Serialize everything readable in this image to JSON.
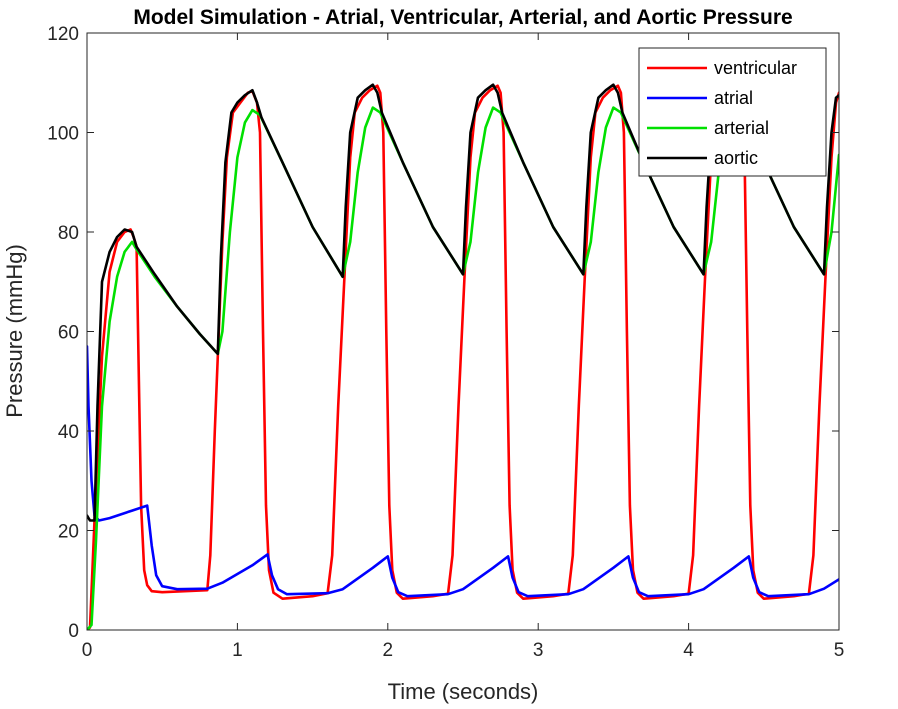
{
  "chart_data": {
    "type": "line",
    "title": "Model Simulation - Atrial, Ventricular, Arterial, and Aortic Pressure",
    "xlabel": "Time (seconds)",
    "ylabel": "Pressure (mmHg)",
    "xlim": [
      0,
      5
    ],
    "ylim": [
      0,
      120
    ],
    "xticks": [
      "0",
      "1",
      "2",
      "3",
      "4",
      "5"
    ],
    "yticks": [
      "0",
      "20",
      "40",
      "60",
      "80",
      "100",
      "120"
    ],
    "grid": false,
    "legend_position": "top-right",
    "series": [
      {
        "name": "ventricular",
        "color": "#ff0000",
        "points": [
          [
            0,
            0
          ],
          [
            0.02,
            0.5
          ],
          [
            0.05,
            22
          ],
          [
            0.1,
            55
          ],
          [
            0.15,
            72
          ],
          [
            0.2,
            78
          ],
          [
            0.25,
            80
          ],
          [
            0.29,
            80.5
          ],
          [
            0.31,
            79
          ],
          [
            0.33,
            77
          ],
          [
            0.345,
            50
          ],
          [
            0.36,
            25
          ],
          [
            0.38,
            12
          ],
          [
            0.4,
            9
          ],
          [
            0.43,
            7.8
          ],
          [
            0.5,
            7.6
          ],
          [
            0.8,
            8
          ],
          [
            0.82,
            15
          ],
          [
            0.85,
            40
          ],
          [
            0.9,
            78
          ],
          [
            0.93,
            95
          ],
          [
            0.97,
            104
          ],
          [
            1.02,
            106
          ],
          [
            1.07,
            108
          ],
          [
            1.1,
            108.3
          ],
          [
            1.13,
            106
          ],
          [
            1.15,
            100
          ],
          [
            1.17,
            60
          ],
          [
            1.19,
            25
          ],
          [
            1.21,
            12
          ],
          [
            1.24,
            7.5
          ],
          [
            1.3,
            6.3
          ],
          [
            1.5,
            6.8
          ],
          [
            1.6,
            7.4
          ],
          [
            1.63,
            15
          ],
          [
            1.67,
            45
          ],
          [
            1.71,
            70
          ],
          [
            1.75,
            95
          ],
          [
            1.78,
            104
          ],
          [
            1.83,
            107
          ],
          [
            1.88,
            108.5
          ],
          [
            1.93,
            109.4
          ],
          [
            1.95,
            108
          ],
          [
            1.97,
            100
          ],
          [
            1.99,
            60
          ],
          [
            2.01,
            25
          ],
          [
            2.03,
            12
          ],
          [
            2.06,
            7.5
          ],
          [
            2.1,
            6.3
          ],
          [
            2.3,
            6.8
          ],
          [
            2.4,
            7.3
          ],
          [
            2.43,
            15
          ],
          [
            2.47,
            45
          ],
          [
            2.51,
            71
          ],
          [
            2.55,
            95
          ],
          [
            2.58,
            104
          ],
          [
            2.63,
            107
          ],
          [
            2.68,
            108.5
          ],
          [
            2.73,
            109.4
          ],
          [
            2.75,
            108
          ],
          [
            2.77,
            100
          ],
          [
            2.79,
            60
          ],
          [
            2.81,
            25
          ],
          [
            2.83,
            12
          ],
          [
            2.86,
            7.5
          ],
          [
            2.9,
            6.3
          ],
          [
            3.1,
            6.8
          ],
          [
            3.2,
            7.3
          ],
          [
            3.23,
            15
          ],
          [
            3.27,
            45
          ],
          [
            3.31,
            71
          ],
          [
            3.35,
            95
          ],
          [
            3.38,
            104
          ],
          [
            3.43,
            107
          ],
          [
            3.48,
            108.5
          ],
          [
            3.53,
            109.4
          ],
          [
            3.55,
            108
          ],
          [
            3.57,
            100
          ],
          [
            3.59,
            60
          ],
          [
            3.61,
            25
          ],
          [
            3.63,
            12
          ],
          [
            3.66,
            7.5
          ],
          [
            3.7,
            6.3
          ],
          [
            3.9,
            6.8
          ],
          [
            4.0,
            7.3
          ],
          [
            4.03,
            15
          ],
          [
            4.07,
            45
          ],
          [
            4.11,
            71
          ],
          [
            4.15,
            95
          ],
          [
            4.18,
            104
          ],
          [
            4.23,
            107
          ],
          [
            4.28,
            108.5
          ],
          [
            4.33,
            109.4
          ],
          [
            4.35,
            108
          ],
          [
            4.37,
            100
          ],
          [
            4.39,
            60
          ],
          [
            4.41,
            25
          ],
          [
            4.43,
            12
          ],
          [
            4.46,
            7.5
          ],
          [
            4.5,
            6.3
          ],
          [
            4.7,
            6.8
          ],
          [
            4.8,
            7.3
          ],
          [
            4.83,
            15
          ],
          [
            4.87,
            45
          ],
          [
            4.91,
            71
          ],
          [
            4.95,
            95
          ],
          [
            4.98,
            106
          ],
          [
            5.0,
            108
          ]
        ]
      },
      {
        "name": "atrial",
        "color": "#0000ff",
        "points": [
          [
            0,
            57
          ],
          [
            0.01,
            45
          ],
          [
            0.03,
            30
          ],
          [
            0.05,
            23
          ],
          [
            0.08,
            22
          ],
          [
            0.15,
            22.5
          ],
          [
            0.3,
            24
          ],
          [
            0.4,
            25
          ],
          [
            0.43,
            17
          ],
          [
            0.46,
            11
          ],
          [
            0.5,
            8.8
          ],
          [
            0.6,
            8.2
          ],
          [
            0.8,
            8.3
          ],
          [
            0.9,
            9.5
          ],
          [
            1.1,
            13
          ],
          [
            1.2,
            15.2
          ],
          [
            1.23,
            11
          ],
          [
            1.27,
            8.2
          ],
          [
            1.33,
            7.2
          ],
          [
            1.6,
            7.4
          ],
          [
            1.7,
            8.2
          ],
          [
            1.9,
            12.5
          ],
          [
            2.0,
            14.8
          ],
          [
            2.03,
            10.5
          ],
          [
            2.07,
            7.6
          ],
          [
            2.13,
            6.8
          ],
          [
            2.4,
            7.2
          ],
          [
            2.5,
            8.2
          ],
          [
            2.7,
            12.5
          ],
          [
            2.8,
            14.8
          ],
          [
            2.83,
            10.5
          ],
          [
            2.87,
            7.6
          ],
          [
            2.93,
            6.8
          ],
          [
            3.2,
            7.2
          ],
          [
            3.3,
            8.2
          ],
          [
            3.5,
            12.5
          ],
          [
            3.6,
            14.8
          ],
          [
            3.63,
            10.5
          ],
          [
            3.67,
            7.6
          ],
          [
            3.73,
            6.8
          ],
          [
            4.0,
            7.2
          ],
          [
            4.1,
            8.2
          ],
          [
            4.3,
            12.5
          ],
          [
            4.4,
            14.8
          ],
          [
            4.43,
            10.5
          ],
          [
            4.47,
            7.6
          ],
          [
            4.53,
            6.8
          ],
          [
            4.8,
            7.2
          ],
          [
            4.9,
            8.3
          ],
          [
            5.0,
            10.2
          ]
        ]
      },
      {
        "name": "arterial",
        "color": "#00e000",
        "points": [
          [
            0,
            0
          ],
          [
            0.03,
            1
          ],
          [
            0.06,
            18
          ],
          [
            0.1,
            45
          ],
          [
            0.15,
            62
          ],
          [
            0.2,
            71
          ],
          [
            0.25,
            76
          ],
          [
            0.3,
            78
          ],
          [
            0.33,
            76.5
          ],
          [
            0.45,
            71
          ],
          [
            0.6,
            65
          ],
          [
            0.75,
            59.5
          ],
          [
            0.87,
            55.5
          ],
          [
            0.9,
            60
          ],
          [
            0.95,
            80
          ],
          [
            1.0,
            95
          ],
          [
            1.05,
            102
          ],
          [
            1.1,
            104.5
          ],
          [
            1.15,
            103.5
          ],
          [
            1.3,
            94
          ],
          [
            1.5,
            81
          ],
          [
            1.7,
            71
          ],
          [
            1.75,
            78
          ],
          [
            1.8,
            92
          ],
          [
            1.85,
            101
          ],
          [
            1.9,
            105
          ],
          [
            1.95,
            104
          ],
          [
            2.1,
            94
          ],
          [
            2.3,
            81
          ],
          [
            2.5,
            71.5
          ],
          [
            2.55,
            78
          ],
          [
            2.6,
            92
          ],
          [
            2.65,
            101
          ],
          [
            2.7,
            105
          ],
          [
            2.75,
            104
          ],
          [
            2.9,
            94
          ],
          [
            3.1,
            81
          ],
          [
            3.3,
            71.5
          ],
          [
            3.35,
            78
          ],
          [
            3.4,
            92
          ],
          [
            3.45,
            101
          ],
          [
            3.5,
            105
          ],
          [
            3.55,
            104
          ],
          [
            3.7,
            94
          ],
          [
            3.9,
            81
          ],
          [
            4.1,
            71.5
          ],
          [
            4.15,
            78
          ],
          [
            4.2,
            92
          ],
          [
            4.25,
            101
          ],
          [
            4.3,
            105
          ],
          [
            4.35,
            104
          ],
          [
            4.5,
            94
          ],
          [
            4.7,
            81
          ],
          [
            4.9,
            71.5
          ],
          [
            4.95,
            80
          ],
          [
            5.0,
            95.5
          ]
        ]
      },
      {
        "name": "aortic",
        "color": "#000000",
        "points": [
          [
            0,
            23
          ],
          [
            0.02,
            22
          ],
          [
            0.05,
            22
          ],
          [
            0.07,
            45
          ],
          [
            0.1,
            70
          ],
          [
            0.15,
            76
          ],
          [
            0.2,
            79
          ],
          [
            0.25,
            80.5
          ],
          [
            0.3,
            80
          ],
          [
            0.33,
            77
          ],
          [
            0.45,
            71.5
          ],
          [
            0.6,
            65
          ],
          [
            0.75,
            59.5
          ],
          [
            0.87,
            55.5
          ],
          [
            0.89,
            75
          ],
          [
            0.92,
            94
          ],
          [
            0.96,
            104
          ],
          [
            1.0,
            106
          ],
          [
            1.05,
            107.5
          ],
          [
            1.1,
            108.5
          ],
          [
            1.13,
            106
          ],
          [
            1.16,
            103
          ],
          [
            1.3,
            94
          ],
          [
            1.5,
            81
          ],
          [
            1.7,
            71
          ],
          [
            1.72,
            85
          ],
          [
            1.75,
            100
          ],
          [
            1.8,
            107
          ],
          [
            1.85,
            108.5
          ],
          [
            1.9,
            109.6
          ],
          [
            1.93,
            108
          ],
          [
            1.96,
            104
          ],
          [
            2.1,
            94
          ],
          [
            2.3,
            81
          ],
          [
            2.5,
            71.5
          ],
          [
            2.52,
            85
          ],
          [
            2.55,
            100
          ],
          [
            2.6,
            107
          ],
          [
            2.65,
            108.5
          ],
          [
            2.7,
            109.6
          ],
          [
            2.73,
            108
          ],
          [
            2.76,
            104
          ],
          [
            2.9,
            94
          ],
          [
            3.1,
            81
          ],
          [
            3.3,
            71.5
          ],
          [
            3.32,
            85
          ],
          [
            3.35,
            100
          ],
          [
            3.4,
            107
          ],
          [
            3.45,
            108.5
          ],
          [
            3.5,
            109.6
          ],
          [
            3.53,
            108
          ],
          [
            3.56,
            104
          ],
          [
            3.7,
            94
          ],
          [
            3.9,
            81
          ],
          [
            4.1,
            71.5
          ],
          [
            4.12,
            85
          ],
          [
            4.15,
            100
          ],
          [
            4.2,
            107
          ],
          [
            4.25,
            108.5
          ],
          [
            4.3,
            109.6
          ],
          [
            4.33,
            108
          ],
          [
            4.36,
            104
          ],
          [
            4.5,
            94
          ],
          [
            4.7,
            81
          ],
          [
            4.9,
            71.5
          ],
          [
            4.92,
            85
          ],
          [
            4.95,
            100
          ],
          [
            4.98,
            107
          ],
          [
            5.0,
            107.5
          ]
        ]
      }
    ]
  }
}
